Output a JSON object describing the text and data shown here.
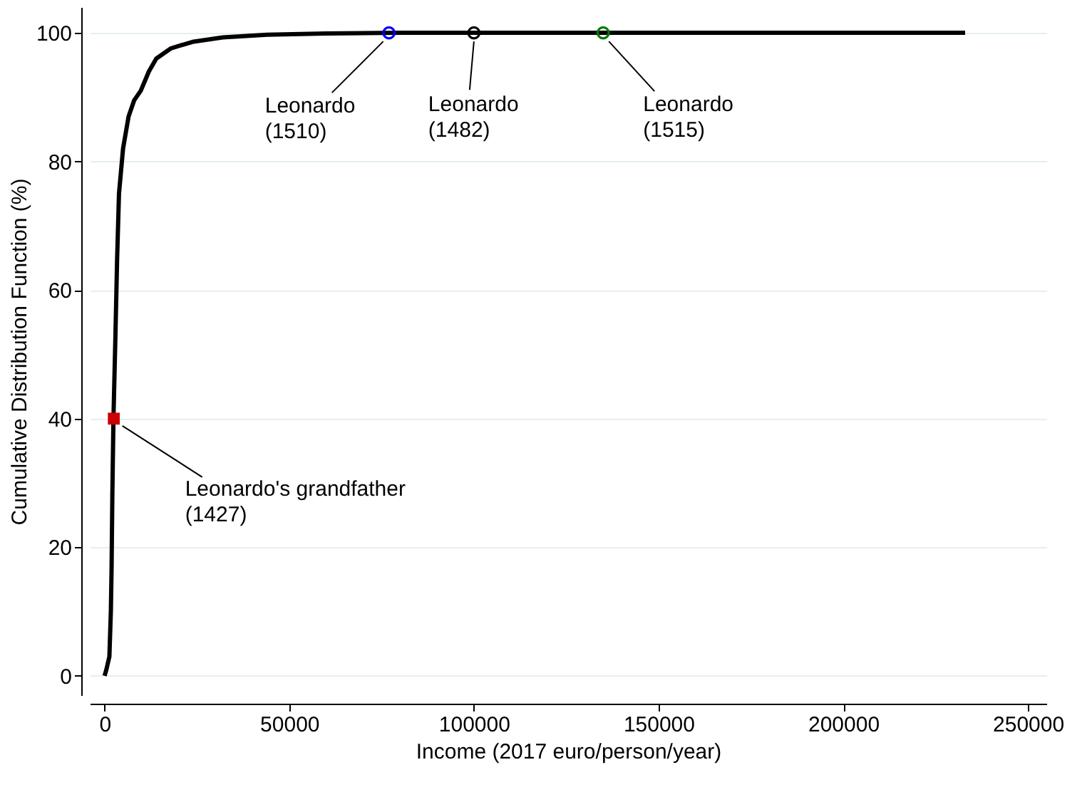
{
  "chart_data": {
    "type": "line",
    "xlabel": "Income (2017 euro/person/year)",
    "ylabel": "Cumulative Distribution Function (%)",
    "xlim": [
      -4000,
      255000
    ],
    "xticks": [
      0,
      50000,
      100000,
      150000,
      200000,
      250000
    ],
    "ylim": [
      -3,
      104
    ],
    "yticks": [
      0,
      20,
      40,
      60,
      80,
      100
    ],
    "grid": "y",
    "series": [
      {
        "color": "#000000",
        "marker": "none",
        "x": [
          0,
          500,
          1300,
          1700,
          1900,
          2100,
          2400,
          2900,
          3400,
          3900,
          5000,
          6500,
          8000,
          9800,
          12000,
          14000,
          18000,
          23800,
          32000,
          44000,
          60000,
          80000,
          233000
        ],
        "values": [
          0,
          1,
          3,
          10,
          17,
          28,
          40,
          52,
          65,
          75,
          82,
          87,
          89.5,
          91,
          94,
          96,
          97.6,
          98.6,
          99.3,
          99.7,
          99.9,
          100,
          100
        ]
      },
      {
        "type": "scatter",
        "color": "#0000ff",
        "marker": "circle",
        "x": [
          77000
        ],
        "values": [
          100
        ]
      },
      {
        "type": "scatter",
        "color": "#000000",
        "marker": "circle",
        "x": [
          100000
        ],
        "values": [
          100
        ]
      },
      {
        "type": "scatter",
        "color": "#007a00",
        "marker": "circle",
        "x": [
          135000
        ],
        "values": [
          100
        ]
      },
      {
        "type": "scatter",
        "color": "#cc0000",
        "marker": "square",
        "x": [
          2500
        ],
        "values": [
          40
        ]
      }
    ],
    "annotations": [
      {
        "text": "Leonardo\n(1510)",
        "x": 77000,
        "y": 100
      },
      {
        "text": "Leonardo\n(1482)",
        "x": 100000,
        "y": 100
      },
      {
        "text": "Leonardo\n(1515)",
        "x": 135000,
        "y": 100
      },
      {
        "text": "Leonardo's grandfather\n(1427)",
        "x": 2500,
        "y": 40
      }
    ]
  }
}
